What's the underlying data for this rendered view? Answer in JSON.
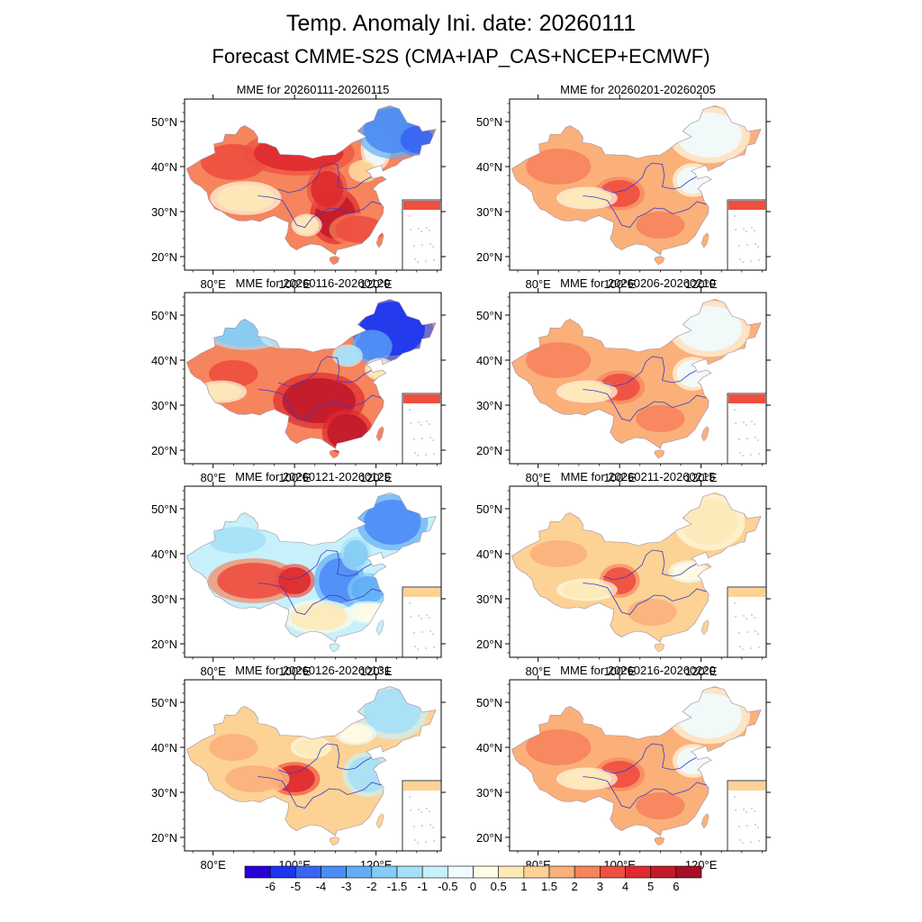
{
  "figure": {
    "title": "Temp. Anomaly Ini. date: 20260111",
    "subtitle": "Forecast CMME-S2S (CMA+IAP_CAS+NCEP+ECMWF)"
  },
  "panels": [
    {
      "title": "MME for 20260111-20260115",
      "pattern": "warm-west-cold-northeast"
    },
    {
      "title": "MME for 20260116-20260120",
      "pattern": "warm-south-cold-north"
    },
    {
      "title": "MME for 20260121-20260125",
      "pattern": "warm-tibet-cold-east"
    },
    {
      "title": "MME for 20260126-20260131",
      "pattern": "mild-mixed"
    },
    {
      "title": "MME for 20260201-20260205",
      "pattern": "warm-mild"
    },
    {
      "title": "MME for 20260206-20260210",
      "pattern": "warm-mild"
    },
    {
      "title": "MME for 20260211-20260215",
      "pattern": "warm-weak"
    },
    {
      "title": "MME for 20260216-20260220",
      "pattern": "warm-mild"
    }
  ],
  "axes": {
    "lat_labels": [
      "50°N",
      "40°N",
      "30°N",
      "20°N"
    ],
    "lon_labels": [
      "80°E",
      "100°E",
      "120°E"
    ]
  },
  "colorbar": {
    "labels": [
      "-6",
      "-5",
      "-4",
      "-3",
      "-2",
      "-1.5",
      "-1",
      "-0.5",
      "0",
      "0.5",
      "1",
      "1.5",
      "2",
      "3",
      "4",
      "5",
      "6"
    ],
    "colors": [
      "#2a00d8",
      "#1b35f0",
      "#3a64f2",
      "#4c8df5",
      "#62aef5",
      "#84ccf5",
      "#a6e0f7",
      "#c7f1fa",
      "#f0fbff",
      "#fffbe4",
      "#fde9b8",
      "#fdd295",
      "#fbb07a",
      "#f6845c",
      "#ee4f3f",
      "#df2a2f",
      "#c21a2a",
      "#a50f25"
    ]
  }
}
